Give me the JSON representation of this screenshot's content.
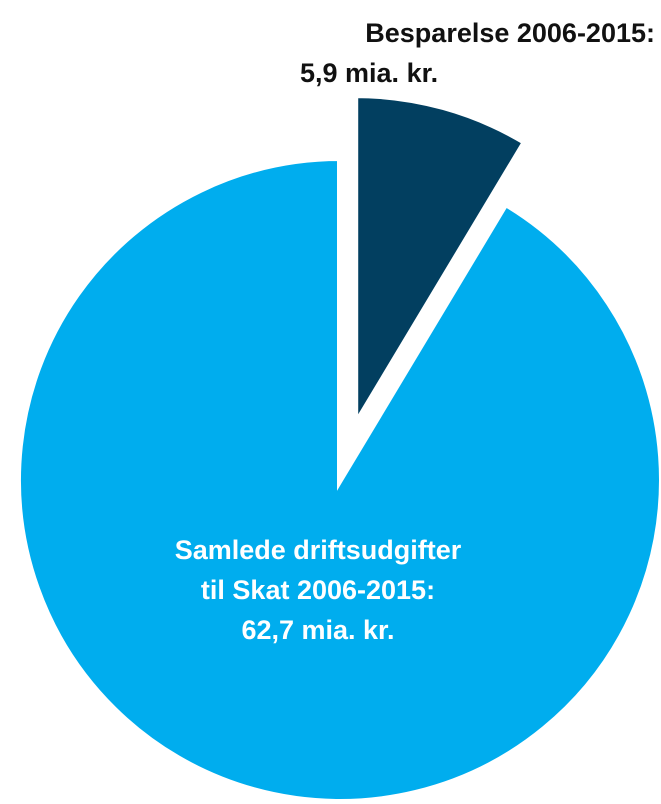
{
  "chart_data": {
    "type": "pie",
    "categories": [
      [
        "Besparelse 2006-2015:"
      ],
      [
        "Samlede driftsudgifter",
        "til Skat 2006-2015:"
      ]
    ],
    "values": [
      5.9,
      62.7
    ],
    "value_labels": [
      "5,9 mia. kr.",
      "62,7 mia. kr."
    ],
    "colors": [
      "#023f60",
      "#00adee"
    ],
    "exploded": [
      true,
      false
    ]
  }
}
